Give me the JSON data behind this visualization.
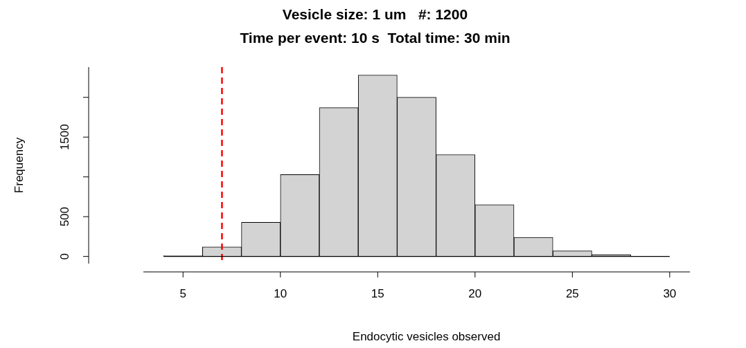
{
  "chart_data": {
    "type": "histogram",
    "title": "Vesicle size: 1 um   #: 1200",
    "subtitle": "Time per event: 10 s  Total time: 30 min",
    "xlabel": "Endocytic vesicles observed",
    "ylabel": "Frequency",
    "bins": [
      4,
      6,
      8,
      10,
      12,
      14,
      16,
      18,
      20,
      22,
      24,
      26,
      28
    ],
    "values": [
      10,
      120,
      430,
      1030,
      1870,
      2280,
      2000,
      1280,
      650,
      240,
      70,
      20
    ],
    "color": "#d3d3d3",
    "xlim": [
      2.96,
      31.04
    ],
    "xticks": [
      5,
      10,
      15,
      20,
      25,
      30
    ],
    "ylim": [
      -90,
      2380
    ],
    "yticks": [
      0,
      500,
      {
        "value": 1000,
        "label": null
      },
      1500,
      {
        "value": 2000,
        "label": null
      }
    ],
    "ref_lines": [
      {
        "axis": "x",
        "value": 7,
        "color": "#ff0000",
        "line_style": "dashed"
      },
      {
        "axis": "y",
        "value": 0,
        "color": "#000000",
        "line_style": "solid"
      }
    ],
    "grid": false,
    "legend": false
  }
}
